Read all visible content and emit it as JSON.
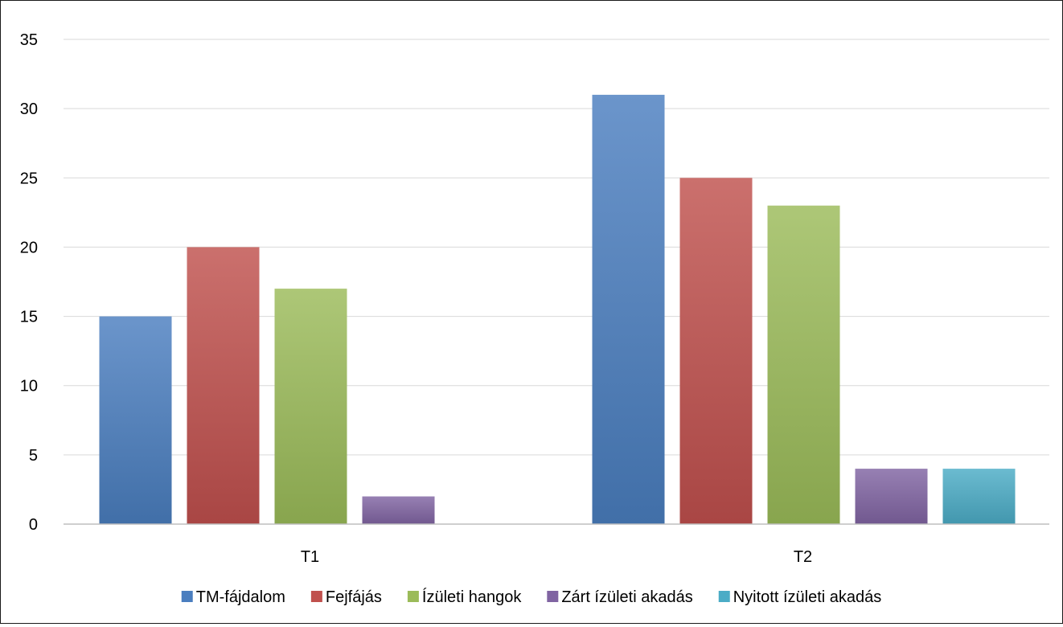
{
  "chart_data": {
    "type": "bar",
    "categories": [
      "T1",
      "T2"
    ],
    "series": [
      {
        "name": "TM-fájdalom",
        "values": [
          15,
          31
        ],
        "color": "#4a7ebf"
      },
      {
        "name": "Fejfájás",
        "values": [
          20,
          25
        ],
        "color": "#c0504d"
      },
      {
        "name": "Ízületi hangok",
        "values": [
          17,
          23
        ],
        "color": "#9bbb59"
      },
      {
        "name": "Zárt ízületi akadás",
        "values": [
          2,
          4
        ],
        "color": "#8064a2"
      },
      {
        "name": "Nyitott ízületi akadás",
        "values": [
          null,
          4
        ],
        "color": "#4bacc6"
      }
    ],
    "ylim": [
      0,
      35
    ],
    "yticks": [
      "0",
      "5",
      "10",
      "15",
      "20",
      "25",
      "30",
      "35"
    ],
    "grid": true,
    "legend_position": "bottom"
  }
}
